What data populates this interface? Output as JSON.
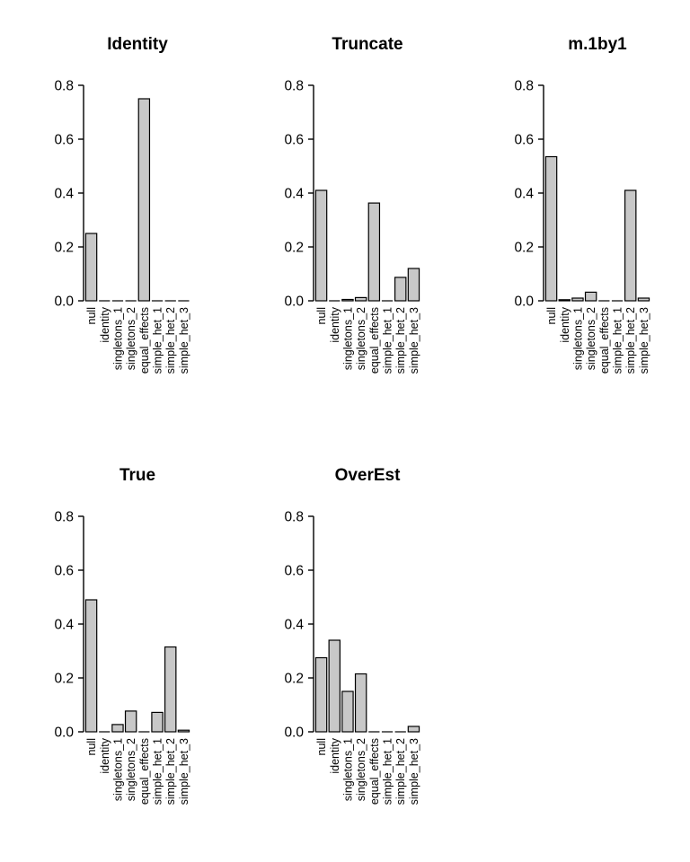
{
  "figure": {
    "background": "#ffffff",
    "panel_titles": [
      "Identity",
      "Truncate",
      "m.1by1",
      "True",
      "OverEst"
    ]
  },
  "style": {
    "bar_fill": "#c8c8c8",
    "bar_stroke": "#000000",
    "axis_color": "#000000",
    "text_color": "#000000"
  },
  "axis": {
    "ticks": [
      0,
      0.2,
      0.4,
      0.6,
      0.8
    ],
    "tick_labels": [
      "0.0",
      "0.2",
      "0.4",
      "0.6",
      "0.8"
    ],
    "ylim": [
      0,
      0.8
    ]
  },
  "categories": [
    "null",
    "identity",
    "singletons_1",
    "singletons_2",
    "equal_effects",
    "simple_het_1",
    "simple_het_2",
    "simple_het_3"
  ],
  "chart_data": [
    {
      "type": "bar",
      "title": "Identity",
      "categories": [
        "null",
        "identity",
        "singletons_1",
        "singletons_2",
        "equal_effects",
        "simple_het_1",
        "simple_het_2",
        "simple_het_3"
      ],
      "values": [
        0.25,
        0,
        0,
        0,
        0.75,
        0,
        0,
        0
      ],
      "xlabel": "",
      "ylabel": "",
      "ylim": [
        0,
        0.8
      ],
      "grid": false,
      "legend": "none"
    },
    {
      "type": "bar",
      "title": "Truncate",
      "categories": [
        "null",
        "identity",
        "singletons_1",
        "singletons_2",
        "equal_effects",
        "simple_het_1",
        "simple_het_2",
        "simple_het_3"
      ],
      "values": [
        0.41,
        0,
        0.005,
        0.012,
        0.363,
        0,
        0.087,
        0.12
      ],
      "xlabel": "",
      "ylabel": "",
      "ylim": [
        0,
        0.8
      ],
      "grid": false,
      "legend": "none"
    },
    {
      "type": "bar",
      "title": "m.1by1",
      "categories": [
        "null",
        "identity",
        "singletons_1",
        "singletons_2",
        "equal_effects",
        "simple_het_1",
        "simple_het_2",
        "simple_het_3"
      ],
      "values": [
        0.535,
        0.004,
        0.01,
        0.032,
        0,
        0,
        0.41,
        0.01
      ],
      "xlabel": "",
      "ylabel": "",
      "ylim": [
        0,
        0.8
      ],
      "grid": false,
      "legend": "none"
    },
    {
      "type": "bar",
      "title": "True",
      "categories": [
        "null",
        "identity",
        "singletons_1",
        "singletons_2",
        "equal_effects",
        "simple_het_1",
        "simple_het_2",
        "simple_het_3"
      ],
      "values": [
        0.49,
        0,
        0.027,
        0.077,
        0,
        0.072,
        0.315,
        0.006
      ],
      "xlabel": "",
      "ylabel": "",
      "ylim": [
        0,
        0.8
      ],
      "grid": false,
      "legend": "none"
    },
    {
      "type": "bar",
      "title": "OverEst",
      "categories": [
        "null",
        "identity",
        "singletons_1",
        "singletons_2",
        "equal_effects",
        "simple_het_1",
        "simple_het_2",
        "simple_het_3"
      ],
      "values": [
        0.275,
        0.34,
        0.15,
        0.215,
        0,
        0,
        0,
        0.02
      ],
      "xlabel": "",
      "ylabel": "",
      "ylim": [
        0,
        0.8
      ],
      "grid": false,
      "legend": "none"
    }
  ]
}
